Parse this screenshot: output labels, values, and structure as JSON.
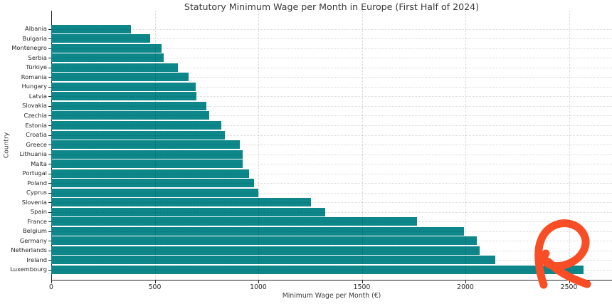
{
  "chart_data": {
    "type": "bar",
    "orientation": "horizontal",
    "title": "Statutory Minimum Wage per Month in Europe (First Half of 2024)",
    "xlabel": "Minimum Wage per Month (€)",
    "ylabel": "Country",
    "categories": [
      "Albania",
      "Bulgaria",
      "Montenegro",
      "Serbia",
      "Türkiye",
      "Romania",
      "Hungary",
      "Latvia",
      "Slovakia",
      "Czechia",
      "Estonia",
      "Croatia",
      "Greece",
      "Lithuania",
      "Malta",
      "Portugal",
      "Poland",
      "Cyprus",
      "Slovenia",
      "Spain",
      "France",
      "Belgium",
      "Germany",
      "Netherlands",
      "Ireland",
      "Luxembourg"
    ],
    "values": [
      385,
      477,
      533,
      544,
      610,
      663,
      697,
      700,
      750,
      764,
      820,
      840,
      910,
      924,
      925,
      957,
      978,
      1000,
      1254,
      1323,
      1767,
      1994,
      2054,
      2070,
      2146,
      2571
    ],
    "xticks": [
      0,
      500,
      1000,
      1500,
      2000,
      2500
    ],
    "xlim": [
      0,
      2700
    ],
    "grid": true,
    "legend_position": "none",
    "bar_color": "#0d878a"
  },
  "annotation": {
    "name": "orange-scribble",
    "description": "hand-drawn orange R-shaped scribble over the Luxembourg bar near the 2500 tick",
    "color": "#f94d26"
  }
}
